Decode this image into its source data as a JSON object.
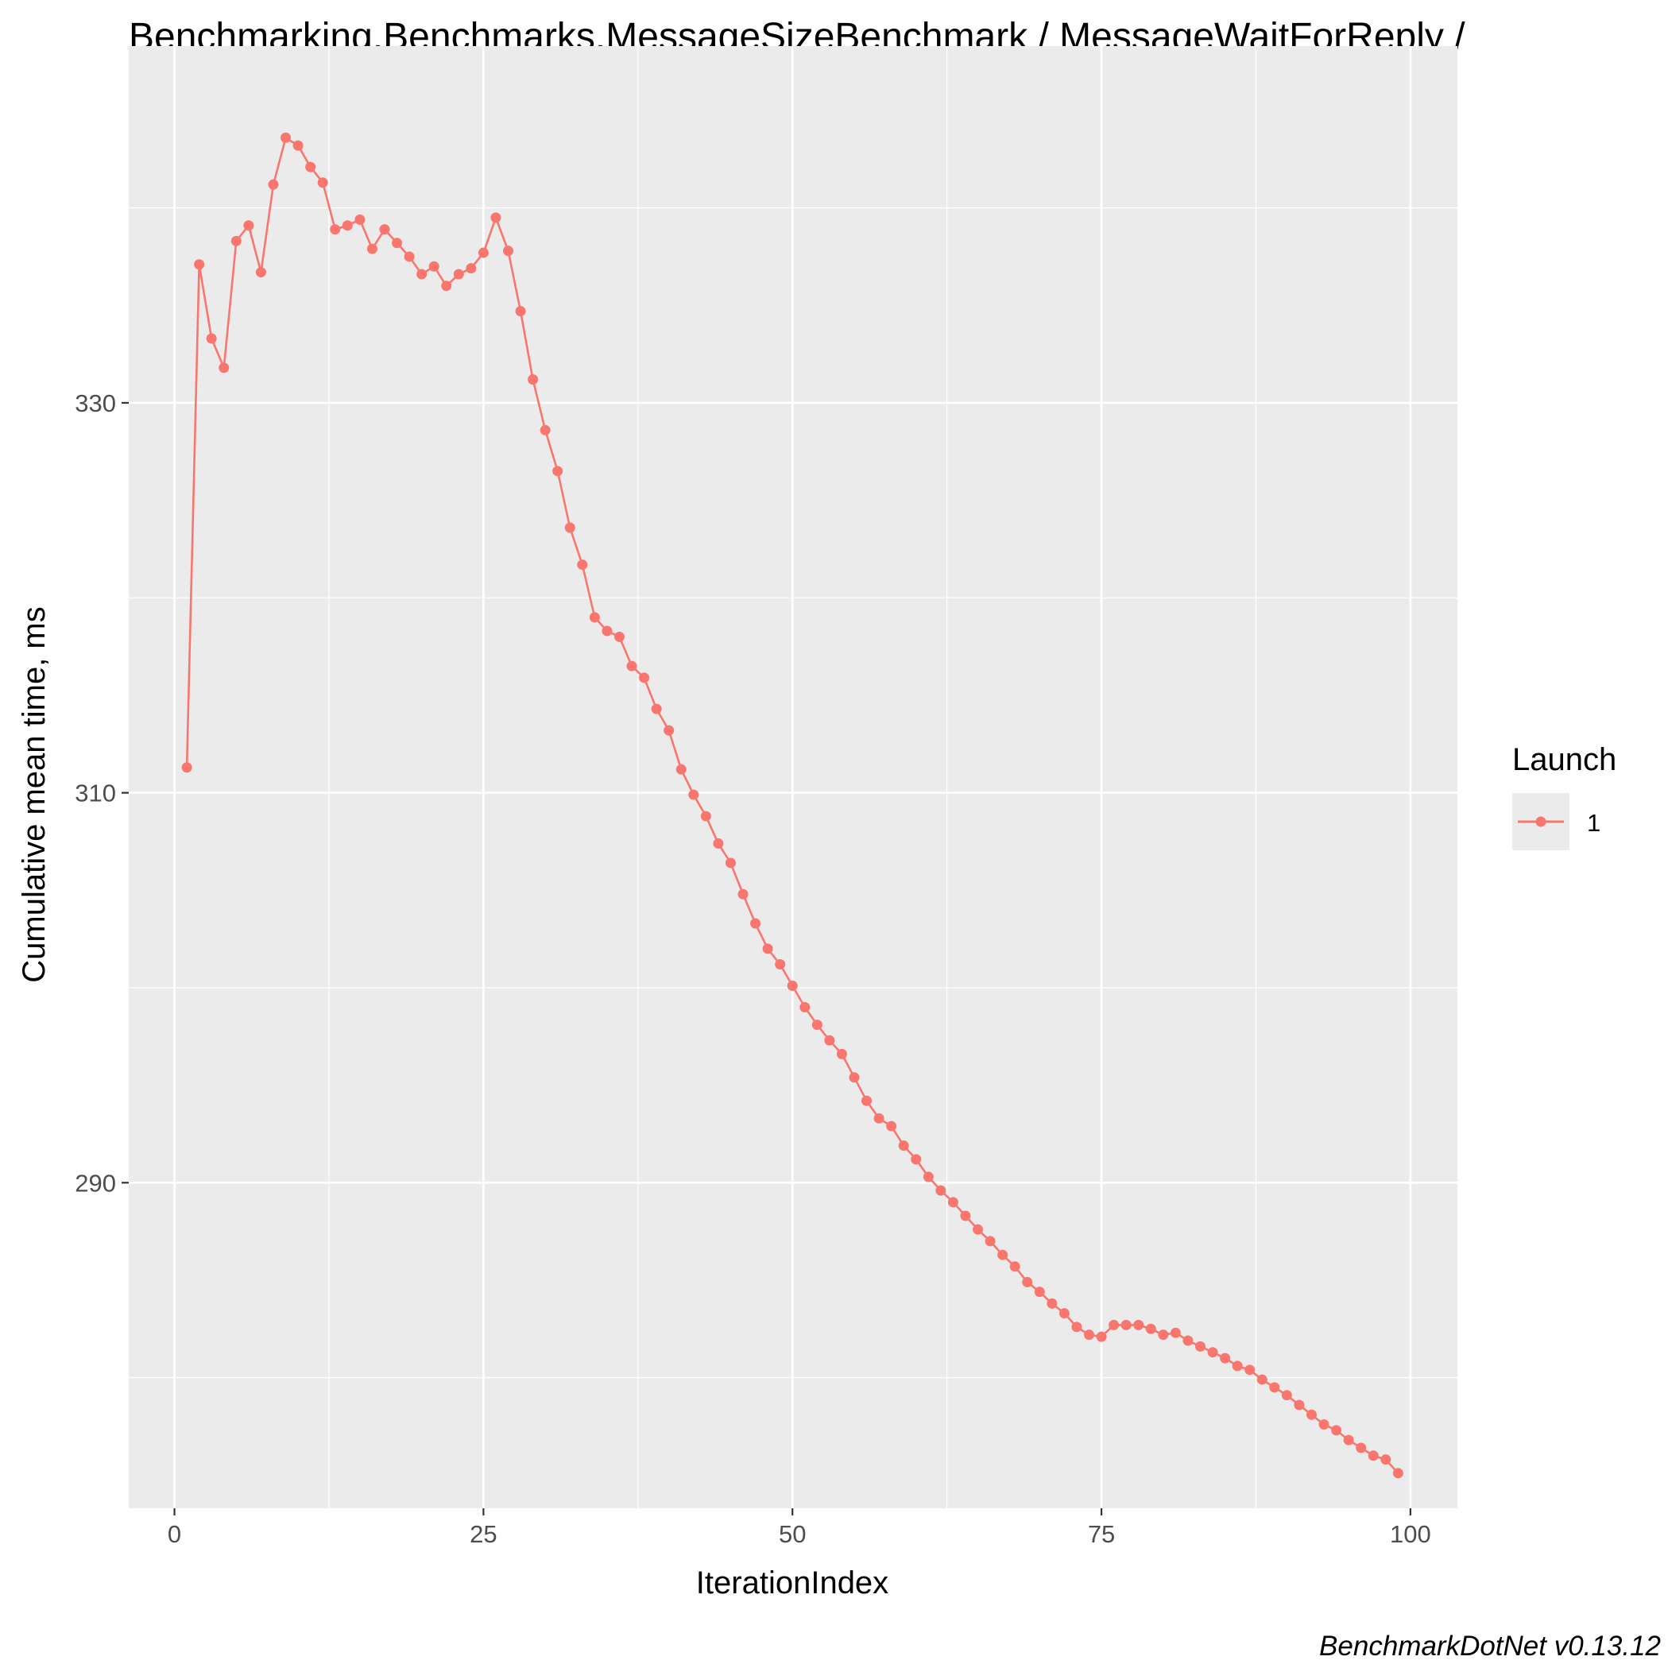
{
  "chart_data": {
    "type": "line",
    "title": "Benchmarking.Benchmarks.MessageSizeBenchmark / MessageWaitForReply /",
    "xlabel": "IterationIndex",
    "ylabel": "Cumulative mean time, ms",
    "caption": "BenchmarkDotNet v0.13.12",
    "xlim": [
      -3.7,
      103.8
    ],
    "ylim": [
      273.3,
      348.3
    ],
    "x_ticks": [
      0,
      25,
      50,
      75,
      100
    ],
    "x_tick_labels": [
      "0",
      "25",
      "50",
      "75",
      "100"
    ],
    "y_ticks": [
      290,
      310,
      330
    ],
    "y_tick_labels": [
      "290",
      "310",
      "330"
    ],
    "grid": true,
    "panel_background": "#ebebeb",
    "legend": {
      "title": "Launch",
      "position": "right",
      "entries": [
        "1"
      ]
    },
    "series": [
      {
        "name": "1",
        "color": "#f8766d",
        "x": [
          1,
          2,
          3,
          4,
          5,
          6,
          7,
          8,
          9,
          10,
          11,
          12,
          13,
          14,
          15,
          16,
          17,
          18,
          19,
          20,
          21,
          22,
          23,
          24,
          25,
          26,
          27,
          28,
          29,
          30,
          31,
          32,
          33,
          34,
          35,
          36,
          37,
          38,
          39,
          40,
          41,
          42,
          43,
          44,
          45,
          46,
          47,
          48,
          49,
          50,
          51,
          52,
          53,
          54,
          55,
          56,
          57,
          58,
          59,
          60,
          61,
          62,
          63,
          64,
          65,
          66,
          67,
          68,
          69,
          70,
          71,
          72,
          73,
          74,
          75,
          76,
          77,
          78,
          79,
          80,
          81,
          82,
          83,
          84,
          85,
          86,
          87,
          88,
          89,
          90,
          91,
          92,
          93,
          94,
          95,
          96,
          97,
          98,
          99
        ],
        "y": [
          311.3,
          337.1,
          333.3,
          331.8,
          338.3,
          339.1,
          336.7,
          341.2,
          343.6,
          343.2,
          342.1,
          341.3,
          338.9,
          339.1,
          339.4,
          337.9,
          338.9,
          338.2,
          337.5,
          336.6,
          337.0,
          336.0,
          336.6,
          336.9,
          337.7,
          339.5,
          337.8,
          334.7,
          331.2,
          328.6,
          326.5,
          323.6,
          321.7,
          319.0,
          318.3,
          318.0,
          316.5,
          315.9,
          314.3,
          313.2,
          311.2,
          309.9,
          308.8,
          307.4,
          306.4,
          304.8,
          303.3,
          302.0,
          301.2,
          300.1,
          299.0,
          298.1,
          297.3,
          296.6,
          295.4,
          294.2,
          293.3,
          292.9,
          291.9,
          291.2,
          290.3,
          289.6,
          289.0,
          288.3,
          287.6,
          287.0,
          286.3,
          285.7,
          284.9,
          284.4,
          283.8,
          283.3,
          282.6,
          282.2,
          282.1,
          282.7,
          282.7,
          282.7,
          282.5,
          282.2,
          282.3,
          281.9,
          281.6,
          281.3,
          281.0,
          280.6,
          280.4,
          279.9,
          279.5,
          279.1,
          278.6,
          278.1,
          277.6,
          277.3,
          276.8,
          276.4,
          276.0,
          275.8,
          275.1
        ]
      }
    ]
  }
}
